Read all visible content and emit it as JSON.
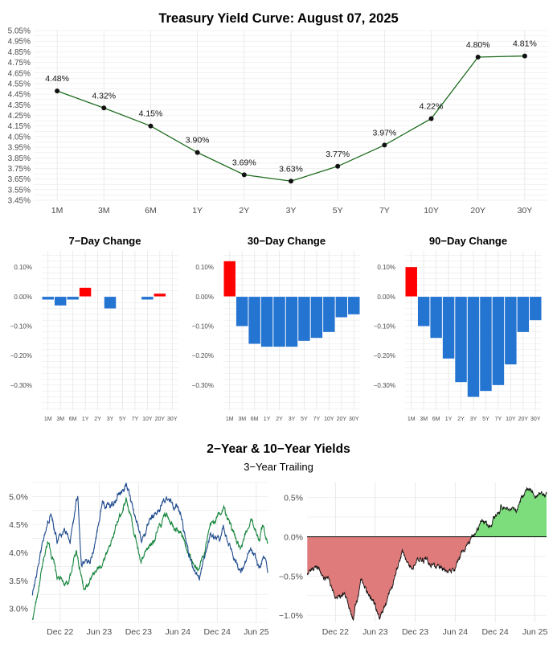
{
  "title": "Treasury Yield Curve: August 07, 2025",
  "section2": {
    "title": "2−Year & 10−Year Yields",
    "subtitle": "3−Year Trailing"
  },
  "colors": {
    "curve_line": "#1e6b1e",
    "curve_point": "#111111",
    "bar_negative": "#2474d2",
    "bar_positive": "#ff0000",
    "y2_line": "#1e4a8c",
    "y10_line": "#15843c",
    "spread_negative_fill": "#e07b7b",
    "spread_positive_fill": "#7ddc7b",
    "spread_line": "#111111",
    "grid": "#e6e6e6",
    "axis_text": "#4d4d4d"
  },
  "chart_data": [
    {
      "id": "yield-curve",
      "type": "line",
      "title": "Treasury Yield Curve: August 07, 2025",
      "categories": [
        "1M",
        "3M",
        "6M",
        "1Y",
        "2Y",
        "3Y",
        "5Y",
        "7Y",
        "10Y",
        "20Y",
        "30Y"
      ],
      "values": [
        4.48,
        4.32,
        4.15,
        3.9,
        3.69,
        3.63,
        3.77,
        3.97,
        4.22,
        4.8,
        4.81
      ],
      "data_labels": [
        "4.48%",
        "4.32%",
        "4.15%",
        "3.90%",
        "3.69%",
        "3.63%",
        "3.77%",
        "3.97%",
        "4.22%",
        "4.80%",
        "4.81%"
      ],
      "y_ticks": [
        "3.45%",
        "3.55%",
        "3.65%",
        "3.75%",
        "3.85%",
        "3.95%",
        "4.05%",
        "4.15%",
        "4.25%",
        "4.35%",
        "4.45%",
        "4.55%",
        "4.65%",
        "4.75%",
        "4.85%",
        "4.95%",
        "5.05%"
      ],
      "ylim": [
        3.45,
        5.05
      ],
      "grid": true
    },
    {
      "id": "change-7d",
      "type": "bar",
      "title": "7−Day Change",
      "categories": [
        "1M",
        "3M",
        "6M",
        "1Y",
        "2Y",
        "3Y",
        "5Y",
        "7Y",
        "10Y",
        "20Y",
        "30Y"
      ],
      "values": [
        -0.01,
        -0.03,
        -0.01,
        0.03,
        0.0,
        -0.04,
        0.0,
        0.0,
        -0.01,
        0.01,
        0.0
      ],
      "y_ticks": [
        "0.10%",
        "0.00%",
        "−0.10%",
        "−0.20%",
        "−0.30%"
      ],
      "ylim": [
        -0.385,
        0.155
      ]
    },
    {
      "id": "change-30d",
      "type": "bar",
      "title": "30−Day Change",
      "categories": [
        "1M",
        "3M",
        "6M",
        "1Y",
        "2Y",
        "3Y",
        "5Y",
        "7Y",
        "10Y",
        "20Y",
        "30Y"
      ],
      "values": [
        0.12,
        -0.1,
        -0.16,
        -0.17,
        -0.17,
        -0.17,
        -0.15,
        -0.14,
        -0.12,
        -0.07,
        -0.06
      ],
      "y_ticks": [
        "0.10%",
        "0.00%",
        "−0.10%",
        "−0.20%",
        "−0.30%"
      ],
      "ylim": [
        -0.385,
        0.155
      ]
    },
    {
      "id": "change-90d",
      "type": "bar",
      "title": "90−Day Change",
      "categories": [
        "1M",
        "3M",
        "6M",
        "1Y",
        "2Y",
        "3Y",
        "5Y",
        "7Y",
        "10Y",
        "20Y",
        "30Y"
      ],
      "values": [
        0.1,
        -0.1,
        -0.14,
        -0.21,
        -0.29,
        -0.34,
        -0.32,
        -0.3,
        -0.23,
        -0.12,
        -0.08
      ],
      "y_ticks": [
        "0.10%",
        "0.00%",
        "−0.10%",
        "−0.20%",
        "−0.30%"
      ],
      "ylim": [
        -0.385,
        0.155
      ]
    },
    {
      "id": "yields-2y-10y",
      "type": "line",
      "x_ticks": [
        "Dec 22",
        "Jun 23",
        "Dec 23",
        "Jun 24",
        "Dec 24",
        "Jun 25"
      ],
      "x_range": [
        "2022-08-07",
        "2025-08-07"
      ],
      "y_ticks": [
        "3.0%",
        "3.5%",
        "4.0%",
        "4.5%",
        "5.0%"
      ],
      "ylim": [
        2.75,
        5.25
      ],
      "series": [
        {
          "key": "2Y",
          "anchors": [
            [
              "2022-08-08",
              3.22
            ],
            [
              "2022-09-30",
              4.28
            ],
            [
              "2022-11-04",
              4.72
            ],
            [
              "2022-12-01",
              4.25
            ],
            [
              "2023-01-05",
              4.45
            ],
            [
              "2023-01-31",
              4.2
            ],
            [
              "2023-03-08",
              5.05
            ],
            [
              "2023-03-24",
              3.8
            ],
            [
              "2023-05-04",
              3.75
            ],
            [
              "2023-06-30",
              4.9
            ],
            [
              "2023-08-01",
              4.8
            ],
            [
              "2023-10-18",
              5.2
            ],
            [
              "2023-11-15",
              4.9
            ],
            [
              "2023-12-28",
              4.25
            ],
            [
              "2024-02-28",
              4.65
            ],
            [
              "2024-04-30",
              5.0
            ],
            [
              "2024-06-28",
              4.72
            ],
            [
              "2024-08-05",
              3.9
            ],
            [
              "2024-09-24",
              3.55
            ],
            [
              "2024-11-15",
              4.32
            ],
            [
              "2024-12-31",
              4.25
            ],
            [
              "2025-01-14",
              4.4
            ],
            [
              "2025-04-04",
              3.65
            ],
            [
              "2025-05-20",
              4.02
            ],
            [
              "2025-06-30",
              3.72
            ],
            [
              "2025-07-28",
              3.92
            ],
            [
              "2025-08-07",
              3.69
            ]
          ]
        },
        {
          "key": "10Y",
          "anchors": [
            [
              "2022-08-08",
              2.78
            ],
            [
              "2022-10-21",
              4.25
            ],
            [
              "2022-12-01",
              3.55
            ],
            [
              "2023-01-18",
              3.4
            ],
            [
              "2023-03-02",
              4.05
            ],
            [
              "2023-04-06",
              3.3
            ],
            [
              "2023-06-30",
              3.82
            ],
            [
              "2023-08-21",
              4.32
            ],
            [
              "2023-10-19",
              5.0
            ],
            [
              "2023-12-27",
              3.8
            ],
            [
              "2024-04-25",
              4.7
            ],
            [
              "2024-06-28",
              4.35
            ],
            [
              "2024-09-16",
              3.62
            ],
            [
              "2024-11-15",
              4.45
            ],
            [
              "2025-01-14",
              4.8
            ],
            [
              "2025-04-04",
              4.0
            ],
            [
              "2025-05-21",
              4.6
            ],
            [
              "2025-06-30",
              4.25
            ],
            [
              "2025-07-15",
              4.48
            ],
            [
              "2025-08-07",
              4.22
            ]
          ]
        }
      ]
    },
    {
      "id": "spread-10y-2y",
      "type": "area",
      "x_ticks": [
        "Dec 22",
        "Jun 23",
        "Dec 23",
        "Jun 24",
        "Dec 24",
        "Jun 25"
      ],
      "x_range": [
        "2022-08-07",
        "2025-08-07"
      ],
      "y_ticks": [
        "0.5%",
        "0.0%",
        "−0.5%",
        "−1.0%"
      ],
      "ylim": [
        -1.09,
        0.69
      ],
      "anchors": [
        [
          "2022-08-08",
          -0.45
        ],
        [
          "2022-09-15",
          -0.35
        ],
        [
          "2022-11-08",
          -0.55
        ],
        [
          "2022-12-12",
          -0.78
        ],
        [
          "2023-01-25",
          -0.7
        ],
        [
          "2023-03-08",
          -1.05
        ],
        [
          "2023-04-10",
          -0.55
        ],
        [
          "2023-06-15",
          -0.88
        ],
        [
          "2023-07-03",
          -1.07
        ],
        [
          "2023-08-21",
          -0.7
        ],
        [
          "2023-10-17",
          -0.2
        ],
        [
          "2023-12-01",
          -0.4
        ],
        [
          "2024-01-10",
          -0.25
        ],
        [
          "2024-03-20",
          -0.4
        ],
        [
          "2024-06-15",
          -0.4
        ],
        [
          "2024-08-05",
          -0.1
        ],
        [
          "2024-09-10",
          0.05
        ],
        [
          "2024-10-15",
          0.2
        ],
        [
          "2024-11-20",
          0.1
        ],
        [
          "2024-12-31",
          0.35
        ],
        [
          "2025-01-15",
          0.38
        ],
        [
          "2025-03-20",
          0.3
        ],
        [
          "2025-04-15",
          0.55
        ],
        [
          "2025-05-21",
          0.6
        ],
        [
          "2025-06-25",
          0.5
        ],
        [
          "2025-07-15",
          0.55
        ],
        [
          "2025-08-07",
          0.53
        ]
      ]
    }
  ]
}
